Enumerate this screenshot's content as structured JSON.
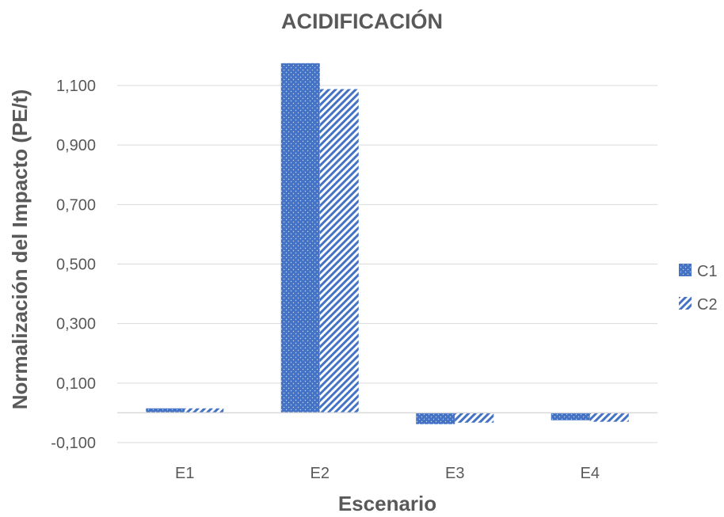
{
  "chart_data": {
    "type": "bar",
    "title": "ACIDIFICACIÓN",
    "xlabel": "Escenario",
    "ylabel": "Normalización del Impacto (PE/t)",
    "categories": [
      "E1",
      "E2",
      "E3",
      "E4"
    ],
    "series": [
      {
        "name": "C1",
        "values": [
          0.015,
          1.175,
          -0.038,
          -0.025
        ],
        "color": "#4472c4",
        "pattern": "dotted"
      },
      {
        "name": "C2",
        "values": [
          0.015,
          1.088,
          -0.033,
          -0.03
        ],
        "color": "#4472c4",
        "pattern": "diagonal-hatch"
      }
    ],
    "ylim": [
      -0.1,
      1.1
    ],
    "yticks": [
      -0.1,
      0.1,
      0.3,
      0.5,
      0.7,
      0.9,
      1.1
    ],
    "ytick_labels": [
      "-0,100",
      "0,100",
      "0,300",
      "0,500",
      "0,700",
      "0,900",
      "1,100"
    ],
    "grid": true,
    "legend": "right"
  }
}
